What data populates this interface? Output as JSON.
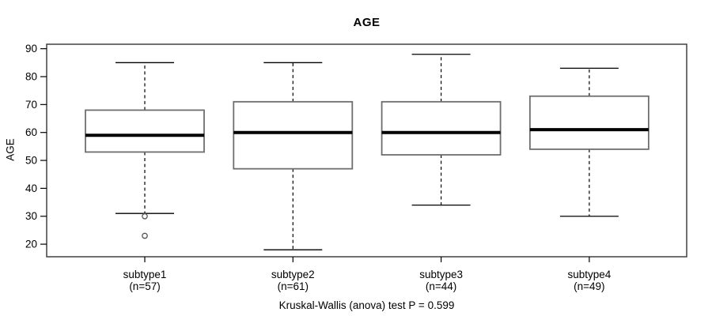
{
  "title": "AGE",
  "caption": "Kruskal-Wallis (anova) test P = 0.599",
  "y_axis": {
    "label": "AGE",
    "tick_labels": [
      "20",
      "30",
      "40",
      "50",
      "60",
      "70",
      "80",
      "90"
    ]
  },
  "x_axis": {
    "categories": [
      "subtype1",
      "subtype2",
      "subtype3",
      "subtype4"
    ],
    "sublabels": [
      "(n=57)",
      "(n=61)",
      "(n=44)",
      "(n=49)"
    ]
  },
  "chart_data": {
    "type": "boxplot",
    "title": "AGE",
    "xlabel": "",
    "ylabel": "AGE",
    "annotation": "Kruskal-Wallis (anova) test P = 0.599",
    "categories": [
      "subtype1",
      "subtype2",
      "subtype3",
      "subtype4"
    ],
    "category_sublabels": [
      "(n=57)",
      "(n=61)",
      "(n=44)",
      "(n=49)"
    ],
    "series": [
      {
        "name": "subtype1",
        "n": 57,
        "whisker_low": 31,
        "q1": 53,
        "median": 59,
        "q3": 68,
        "whisker_high": 85,
        "outliers": [
          30,
          23
        ]
      },
      {
        "name": "subtype2",
        "n": 61,
        "whisker_low": 18,
        "q1": 47,
        "median": 60,
        "q3": 71,
        "whisker_high": 85,
        "outliers": []
      },
      {
        "name": "subtype3",
        "n": 44,
        "whisker_low": 34,
        "q1": 52,
        "median": 60,
        "q3": 71,
        "whisker_high": 88,
        "outliers": []
      },
      {
        "name": "subtype4",
        "n": 49,
        "whisker_low": 30,
        "q1": 54,
        "median": 61,
        "q3": 73,
        "whisker_high": 83,
        "outliers": []
      }
    ],
    "yticks": [
      20,
      30,
      40,
      50,
      60,
      70,
      80,
      90
    ],
    "ylim": [
      15.5,
      91.6
    ],
    "grid": false,
    "legend": false
  },
  "colors": {
    "background": "#ffffff",
    "plot_border": "#404040",
    "box_stroke": "#6e6e6e",
    "box_fill": "#ffffff",
    "median": "#000000",
    "whisker": "#000000",
    "outlier_stroke": "#555555",
    "axis_text": "#000000"
  }
}
